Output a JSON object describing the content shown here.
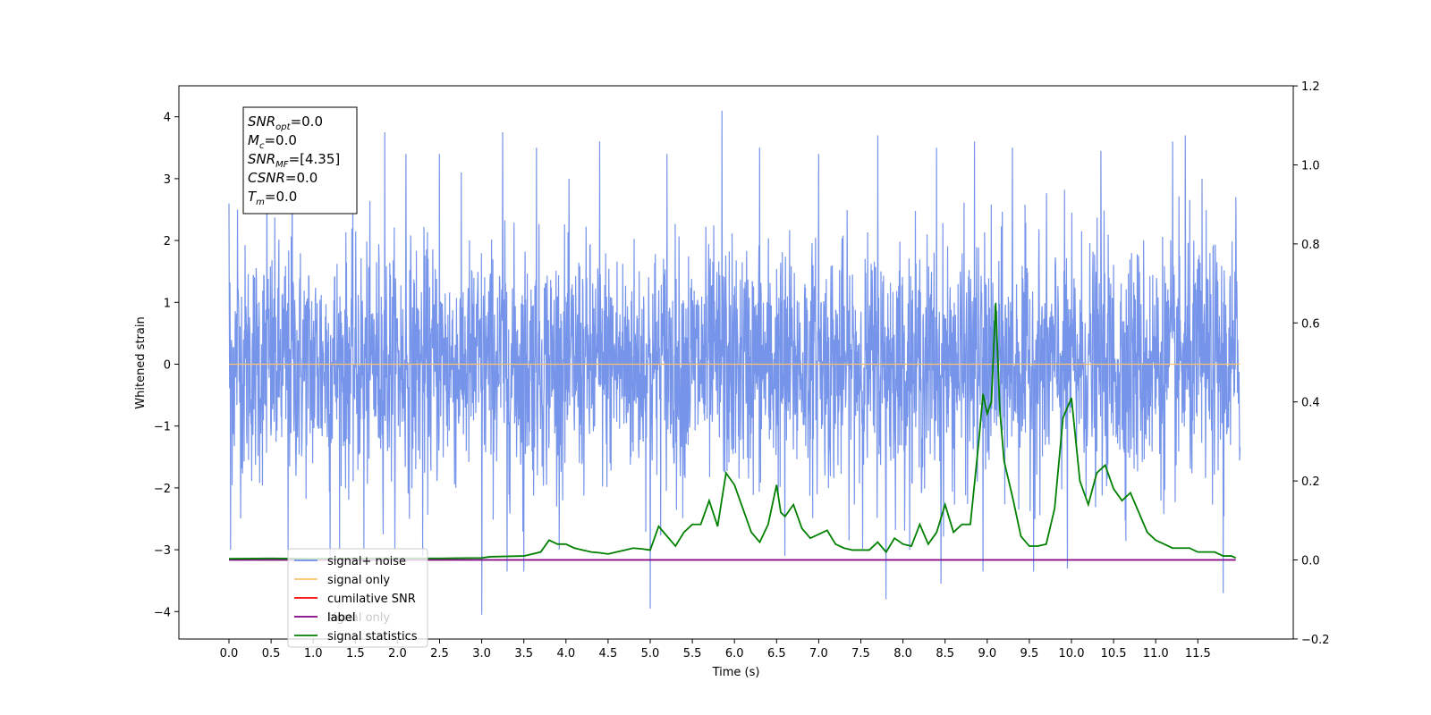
{
  "chart_data": {
    "type": "line",
    "xlabel": "Time (s)",
    "ylabel": "Whitened strain",
    "xlim": [
      -0.3,
      12.3
    ],
    "ylim": [
      -4.4,
      4.5
    ],
    "y2lim": [
      -0.2,
      1.2
    ],
    "x_ticks": [
      0.0,
      0.5,
      1.0,
      1.5,
      2.0,
      2.5,
      3.0,
      3.5,
      4.0,
      4.5,
      5.0,
      5.5,
      6.0,
      6.5,
      7.0,
      7.5,
      8.0,
      8.5,
      9.0,
      9.5,
      10.0,
      10.5,
      11.0,
      11.5
    ],
    "x_tick_labels": [
      "0.0",
      "0.5",
      "1.0",
      "1.5",
      "2.0",
      "2.5",
      "3.0",
      "3.5",
      "4.0",
      "4.5",
      "5.0",
      "5.5",
      "6.0",
      "6.5",
      "7.0",
      "7.5",
      "8.0",
      "8.5",
      "9.0",
      "9.5",
      "10.0",
      "10.5",
      "11.0",
      "11.5"
    ],
    "y_ticks": [
      -4,
      -3,
      -2,
      -1,
      0,
      1,
      2,
      3,
      4
    ],
    "y_tick_labels": [
      "−4",
      "−3",
      "−2",
      "−1",
      "0",
      "1",
      "2",
      "3",
      "4"
    ],
    "y2_ticks": [
      -0.2,
      0.0,
      0.2,
      0.4,
      0.6,
      0.8,
      1.0,
      1.2
    ],
    "y2_tick_labels": [
      "−0.2",
      "0.0",
      "0.2",
      "0.4",
      "0.6",
      "0.8",
      "1.0",
      "1.2"
    ],
    "grid": false,
    "legend_position": "bottom-left",
    "legend": [
      {
        "label": "signal+ noise",
        "color": "#6f8ee8"
      },
      {
        "label": "signal only",
        "color": "#ffc36b"
      },
      {
        "label": "cumilative SNR",
        "color": "#ff0000"
      },
      {
        "label": "label",
        "color": "#800080"
      },
      {
        "label": "signal statistics",
        "color": "#008000"
      }
    ],
    "hidden_legend_label": "signal only",
    "info_box": [
      {
        "base": "SNR",
        "sub": "opt",
        "rest": "=0.0"
      },
      {
        "base": "M",
        "sub": "c",
        "rest": "=0.0"
      },
      {
        "base": "SNR",
        "sub": "MF",
        "rest": "=[4.35]"
      },
      {
        "base": "CSNR",
        "sub": "",
        "rest": "=0.0"
      },
      {
        "base": "T",
        "sub": "m",
        "rest": "=0.0"
      }
    ],
    "series": [
      {
        "name": "signal+ noise",
        "axis": "left",
        "color": "#6f8ee8",
        "t_range": [
          0.0,
          12.0
        ],
        "envelope_upper": 2.0,
        "envelope_lower": -2.0,
        "peaks": [
          {
            "x": 0.0,
            "y": 2.6
          },
          {
            "x": 0.1,
            "y": 2.5
          },
          {
            "x": 0.45,
            "y": 3.2
          },
          {
            "x": 0.75,
            "y": 3.6
          },
          {
            "x": 1.2,
            "y": 3.3
          },
          {
            "x": 1.85,
            "y": 3.75
          },
          {
            "x": 2.1,
            "y": 3.4
          },
          {
            "x": 2.5,
            "y": 3.4
          },
          {
            "x": 3.25,
            "y": 3.75
          },
          {
            "x": 3.65,
            "y": 3.5
          },
          {
            "x": 4.4,
            "y": 3.6
          },
          {
            "x": 5.2,
            "y": 3.4
          },
          {
            "x": 5.85,
            "y": 4.1
          },
          {
            "x": 6.3,
            "y": 3.5
          },
          {
            "x": 7.0,
            "y": 3.4
          },
          {
            "x": 7.7,
            "y": 3.7
          },
          {
            "x": 8.4,
            "y": 3.5
          },
          {
            "x": 8.85,
            "y": 3.6
          },
          {
            "x": 9.3,
            "y": 3.5
          },
          {
            "x": 10.35,
            "y": 3.45
          },
          {
            "x": 11.2,
            "y": 3.6
          },
          {
            "x": 11.35,
            "y": 3.7
          },
          {
            "x": 11.55,
            "y": 3.0
          },
          {
            "x": 11.95,
            "y": 2.7
          }
        ],
        "troughs": [
          {
            "x": 0.02,
            "y": -3.0
          },
          {
            "x": 0.7,
            "y": -3.0
          },
          {
            "x": 1.2,
            "y": -3.1
          },
          {
            "x": 1.6,
            "y": -3.0
          },
          {
            "x": 2.3,
            "y": -3.1
          },
          {
            "x": 3.0,
            "y": -4.05
          },
          {
            "x": 3.3,
            "y": -3.35
          },
          {
            "x": 3.5,
            "y": -3.35
          },
          {
            "x": 5.0,
            "y": -3.95
          },
          {
            "x": 6.6,
            "y": -3.1
          },
          {
            "x": 7.8,
            "y": -3.8
          },
          {
            "x": 8.45,
            "y": -3.55
          },
          {
            "x": 8.95,
            "y": -3.35
          },
          {
            "x": 9.55,
            "y": -3.35
          },
          {
            "x": 9.95,
            "y": -3.3
          },
          {
            "x": 11.8,
            "y": -3.7
          }
        ]
      },
      {
        "name": "signal only",
        "axis": "left",
        "color": "#ffc36b",
        "x": [
          0.0,
          12.0
        ],
        "y": [
          0.0,
          0.0
        ]
      },
      {
        "name": "label",
        "axis": "right",
        "color": "#800080",
        "x": [
          0.0,
          11.95
        ],
        "y": [
          0.0,
          0.0
        ]
      },
      {
        "name": "signal statistics",
        "axis": "right",
        "color": "#008000",
        "x": [
          0.0,
          0.5,
          1.0,
          1.5,
          2.0,
          2.5,
          3.0,
          3.1,
          3.5,
          3.7,
          3.8,
          3.9,
          4.0,
          4.1,
          4.2,
          4.3,
          4.4,
          4.5,
          4.6,
          4.7,
          4.8,
          4.9,
          5.0,
          5.1,
          5.2,
          5.3,
          5.4,
          5.5,
          5.6,
          5.7,
          5.8,
          5.9,
          6.0,
          6.1,
          6.2,
          6.3,
          6.4,
          6.5,
          6.55,
          6.6,
          6.7,
          6.8,
          6.9,
          7.0,
          7.1,
          7.2,
          7.3,
          7.4,
          7.5,
          7.6,
          7.7,
          7.8,
          7.9,
          8.0,
          8.1,
          8.2,
          8.3,
          8.4,
          8.5,
          8.6,
          8.7,
          8.8,
          8.9,
          8.95,
          9.0,
          9.05,
          9.1,
          9.15,
          9.2,
          9.3,
          9.4,
          9.5,
          9.6,
          9.7,
          9.8,
          9.9,
          10.0,
          10.1,
          10.2,
          10.3,
          10.4,
          10.5,
          10.6,
          10.7,
          10.8,
          10.9,
          11.0,
          11.1,
          11.2,
          11.3,
          11.4,
          11.5,
          11.6,
          11.7,
          11.8,
          11.9,
          11.95
        ],
        "y": [
          0.003,
          0.004,
          0.003,
          0.004,
          0.004,
          0.004,
          0.005,
          0.008,
          0.01,
          0.02,
          0.05,
          0.04,
          0.04,
          0.03,
          0.025,
          0.02,
          0.018,
          0.015,
          0.02,
          0.025,
          0.03,
          0.028,
          0.025,
          0.085,
          0.06,
          0.035,
          0.07,
          0.09,
          0.09,
          0.15,
          0.085,
          0.22,
          0.19,
          0.13,
          0.07,
          0.045,
          0.09,
          0.19,
          0.12,
          0.11,
          0.14,
          0.08,
          0.055,
          0.065,
          0.075,
          0.04,
          0.03,
          0.025,
          0.025,
          0.025,
          0.045,
          0.02,
          0.055,
          0.04,
          0.035,
          0.09,
          0.04,
          0.07,
          0.14,
          0.07,
          0.09,
          0.09,
          0.3,
          0.42,
          0.37,
          0.4,
          0.65,
          0.38,
          0.25,
          0.16,
          0.06,
          0.035,
          0.035,
          0.04,
          0.13,
          0.36,
          0.41,
          0.2,
          0.14,
          0.22,
          0.24,
          0.18,
          0.15,
          0.17,
          0.12,
          0.07,
          0.05,
          0.04,
          0.03,
          0.03,
          0.03,
          0.02,
          0.02,
          0.02,
          0.01,
          0.01,
          0.005
        ]
      }
    ]
  }
}
